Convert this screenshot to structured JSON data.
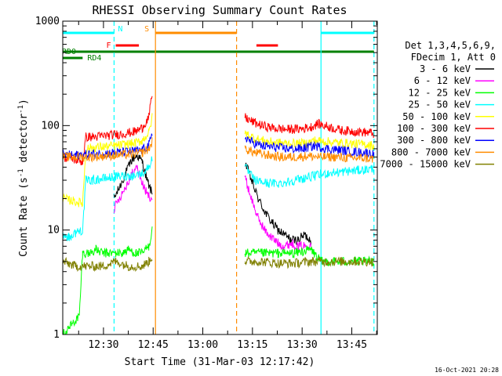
{
  "chart_data": {
    "type": "line",
    "title": "RHESSI Observing Summary Count Rates",
    "xlabel": "Start Time (31-Mar-03 12:17:42)",
    "ylabel": "Count Rate (s",
    "ylabel_exp": "-1",
    "ylabel_mid": " detector",
    "ylabel_tail": ")",
    "x_units": "minutes since 12:17:42",
    "xlim": [
      0,
      95
    ],
    "ylim": [
      1,
      1000
    ],
    "yscale": "log",
    "x_ticks": [
      {
        "label": "12:30",
        "value": 12.3
      },
      {
        "label": "12:45",
        "value": 27.3
      },
      {
        "label": "13:00",
        "value": 42.3
      },
      {
        "label": "13:15",
        "value": 57.3
      },
      {
        "label": "13:30",
        "value": 72.3
      },
      {
        "label": "13:45",
        "value": 87.3
      }
    ],
    "y_ticks": [
      {
        "label": "1",
        "value": 1
      },
      {
        "label": "10",
        "value": 10
      },
      {
        "label": "100",
        "value": 100
      },
      {
        "label": "1000",
        "value": 1000
      }
    ],
    "legend_header": [
      "Det 1,3,4,5,6,9,",
      "FDecim 1, Att 0"
    ],
    "series": [
      {
        "name": "3 - 6 keV",
        "color": "#000000",
        "values": [
          [
            15.5,
            20
          ],
          [
            17,
            25
          ],
          [
            19,
            35
          ],
          [
            21,
            48
          ],
          [
            22.5,
            52
          ],
          [
            24,
            45
          ],
          [
            25.5,
            30
          ],
          [
            27,
            22
          ],
          [
            55,
            45
          ],
          [
            57,
            30
          ],
          [
            59,
            20
          ],
          [
            61,
            15
          ],
          [
            63,
            12
          ],
          [
            65,
            10
          ],
          [
            67,
            9
          ],
          [
            69,
            8
          ],
          [
            71,
            8
          ],
          [
            73,
            9
          ],
          [
            75,
            8
          ]
        ]
      },
      {
        "name": "6 - 12 keV",
        "color": "#ff00ff",
        "values": [
          [
            15.5,
            16
          ],
          [
            17,
            20
          ],
          [
            19,
            26
          ],
          [
            21,
            35
          ],
          [
            22.5,
            40
          ],
          [
            24,
            28
          ],
          [
            25.5,
            22
          ],
          [
            27,
            20
          ],
          [
            55,
            32
          ],
          [
            57,
            20
          ],
          [
            59,
            13
          ],
          [
            61,
            10
          ],
          [
            63,
            8.5
          ],
          [
            65,
            7.5
          ],
          [
            67,
            7
          ],
          [
            69,
            7.5
          ],
          [
            71,
            7
          ],
          [
            73,
            7
          ],
          [
            75,
            7.5
          ]
        ]
      },
      {
        "name": "12 - 25 keV",
        "color": "#00ff00",
        "values": [
          [
            0,
            1
          ],
          [
            5,
            1.5
          ],
          [
            6,
            6
          ],
          [
            8,
            6
          ],
          [
            10,
            6.5
          ],
          [
            12,
            6
          ],
          [
            14,
            6
          ],
          [
            16,
            6
          ],
          [
            18,
            6
          ],
          [
            20,
            6.5
          ],
          [
            22,
            6
          ],
          [
            24,
            6
          ],
          [
            26,
            7
          ],
          [
            27,
            10
          ],
          [
            55,
            6
          ],
          [
            60,
            6
          ],
          [
            65,
            6
          ],
          [
            70,
            6
          ],
          [
            75,
            6.5
          ],
          [
            78,
            5
          ],
          [
            82,
            5
          ],
          [
            86,
            5
          ],
          [
            90,
            5
          ],
          [
            94,
            5
          ]
        ]
      },
      {
        "name": "25 - 50 keV",
        "color": "#00ffff",
        "values": [
          [
            0,
            9
          ],
          [
            2,
            8.5
          ],
          [
            4,
            9.5
          ],
          [
            6,
            10
          ],
          [
            7,
            30
          ],
          [
            9,
            30
          ],
          [
            12,
            31
          ],
          [
            15,
            32
          ],
          [
            18,
            33
          ],
          [
            21,
            33
          ],
          [
            24,
            35
          ],
          [
            26,
            40
          ],
          [
            27,
            50
          ],
          [
            55,
            40
          ],
          [
            58,
            30
          ],
          [
            62,
            28
          ],
          [
            66,
            28
          ],
          [
            70,
            30
          ],
          [
            74,
            32
          ],
          [
            76,
            33
          ],
          [
            80,
            35
          ],
          [
            84,
            36
          ],
          [
            88,
            37
          ],
          [
            92,
            38
          ],
          [
            94,
            39
          ]
        ]
      },
      {
        "name": "50 - 100 keV",
        "color": "#ffff00",
        "values": [
          [
            0,
            20
          ],
          [
            3,
            19
          ],
          [
            6,
            18
          ],
          [
            7,
            60
          ],
          [
            10,
            62
          ],
          [
            13,
            63
          ],
          [
            16,
            64
          ],
          [
            19,
            66
          ],
          [
            22,
            68
          ],
          [
            24,
            72
          ],
          [
            26,
            85
          ],
          [
            27,
            120
          ],
          [
            55,
            85
          ],
          [
            58,
            75
          ],
          [
            62,
            70
          ],
          [
            66,
            68
          ],
          [
            70,
            67
          ],
          [
            74,
            68
          ],
          [
            76,
            72
          ],
          [
            80,
            70
          ],
          [
            84,
            68
          ],
          [
            88,
            67
          ],
          [
            92,
            66
          ],
          [
            94,
            64
          ]
        ]
      },
      {
        "name": "100 - 300 keV",
        "color": "#ff0000",
        "values": [
          [
            0,
            50
          ],
          [
            3,
            48
          ],
          [
            6,
            45
          ],
          [
            7,
            78
          ],
          [
            10,
            78
          ],
          [
            13,
            80
          ],
          [
            16,
            82
          ],
          [
            19,
            84
          ],
          [
            22,
            88
          ],
          [
            24,
            95
          ],
          [
            26,
            120
          ],
          [
            27,
            200
          ],
          [
            55,
            120
          ],
          [
            57,
            110
          ],
          [
            60,
            100
          ],
          [
            64,
            94
          ],
          [
            68,
            92
          ],
          [
            72,
            93
          ],
          [
            75,
            97
          ],
          [
            77,
            104
          ],
          [
            80,
            98
          ],
          [
            84,
            90
          ],
          [
            88,
            88
          ],
          [
            92,
            86
          ],
          [
            94,
            84
          ]
        ]
      },
      {
        "name": "300 - 800 keV",
        "color": "#0000ff",
        "values": [
          [
            0,
            52
          ],
          [
            4,
            52
          ],
          [
            8,
            53
          ],
          [
            12,
            54
          ],
          [
            16,
            55
          ],
          [
            20,
            56
          ],
          [
            24,
            58
          ],
          [
            26,
            65
          ],
          [
            27,
            80
          ],
          [
            55,
            78
          ],
          [
            57,
            70
          ],
          [
            60,
            64
          ],
          [
            64,
            62
          ],
          [
            68,
            60
          ],
          [
            72,
            60
          ],
          [
            74,
            62
          ],
          [
            76,
            64
          ],
          [
            80,
            60
          ],
          [
            84,
            58
          ],
          [
            88,
            56
          ],
          [
            92,
            55
          ],
          [
            94,
            53
          ]
        ]
      },
      {
        "name": "800 - 7000 keV",
        "color": "#ff8c00",
        "values": [
          [
            0,
            50
          ],
          [
            4,
            50
          ],
          [
            8,
            50
          ],
          [
            12,
            51
          ],
          [
            16,
            52
          ],
          [
            20,
            53
          ],
          [
            24,
            55
          ],
          [
            26,
            60
          ],
          [
            27,
            70
          ],
          [
            55,
            60
          ],
          [
            58,
            55
          ],
          [
            62,
            52
          ],
          [
            66,
            50
          ],
          [
            70,
            50
          ],
          [
            74,
            51
          ],
          [
            78,
            50
          ],
          [
            82,
            50
          ],
          [
            86,
            49
          ],
          [
            90,
            49
          ],
          [
            94,
            48
          ]
        ]
      },
      {
        "name": "7000 - 15000 keV",
        "color": "#808000",
        "values": [
          [
            0,
            5
          ],
          [
            4,
            4.5
          ],
          [
            8,
            4.5
          ],
          [
            12,
            4.5
          ],
          [
            16,
            5
          ],
          [
            20,
            4.5
          ],
          [
            24,
            4.5
          ],
          [
            26,
            5
          ],
          [
            27,
            5.5
          ],
          [
            55,
            5
          ],
          [
            60,
            5
          ],
          [
            65,
            4.8
          ],
          [
            70,
            4.8
          ],
          [
            75,
            5
          ],
          [
            80,
            5
          ],
          [
            85,
            5
          ],
          [
            90,
            5
          ],
          [
            94,
            5
          ]
        ]
      }
    ],
    "state_bars": [
      {
        "label": "N",
        "color": "#00ffff",
        "row": "top",
        "segments": [
          [
            0,
            15.5
          ],
          [
            78,
            94
          ]
        ]
      },
      {
        "label": "S",
        "color": "#ff8c00",
        "row": "top",
        "segments": [
          [
            28,
            52.5
          ]
        ]
      },
      {
        "label": "F",
        "color": "#ff0000",
        "row": "mid",
        "segments": [
          [
            16,
            23
          ],
          [
            58.5,
            65
          ]
        ]
      },
      {
        "label": "RD0",
        "color": "#008000",
        "row": "rd0",
        "segments": [
          [
            0,
            94
          ]
        ]
      },
      {
        "label": "RD4",
        "color": "#008000",
        "row": "rd4",
        "segments": [
          [
            0,
            6
          ]
        ]
      }
    ],
    "vertical_markers": [
      {
        "color": "#00ffff",
        "style": "dashed",
        "x": 15.5
      },
      {
        "color": "#ff8c00",
        "style": "solid",
        "x": 28
      },
      {
        "color": "#ff8c00",
        "style": "dashed",
        "x": 52.5
      },
      {
        "color": "#00ffff",
        "style": "solid",
        "x": 78
      },
      {
        "color": "#00ffff",
        "style": "dashed",
        "x": 94
      }
    ],
    "gaps": [
      [
        28,
        55
      ]
    ]
  },
  "timestamp": "16-Oct-2021 20:28"
}
